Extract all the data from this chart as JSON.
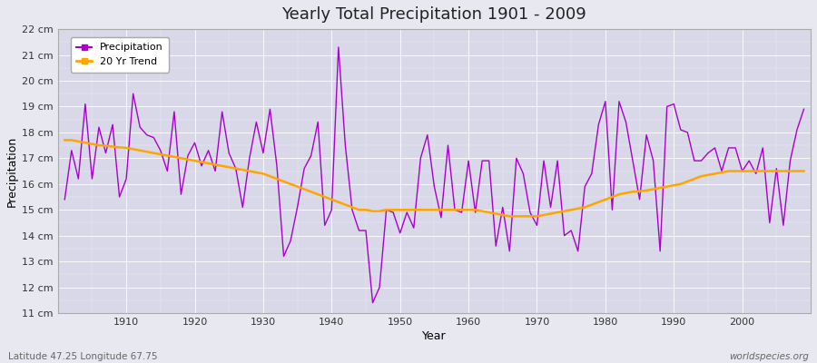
{
  "title": "Yearly Total Precipitation 1901 - 2009",
  "xlabel": "Year",
  "ylabel": "Precipitation",
  "subtitle_left": "Latitude 47.25 Longitude 67.75",
  "subtitle_right": "worldspecies.org",
  "ylim": [
    11,
    22
  ],
  "ytick_labels": [
    "11 cm",
    "12 cm",
    "13 cm",
    "14 cm",
    "15 cm",
    "16 cm",
    "17 cm",
    "18 cm",
    "19 cm",
    "20 cm",
    "21 cm",
    "22 cm"
  ],
  "ytick_values": [
    11,
    12,
    13,
    14,
    15,
    16,
    17,
    18,
    19,
    20,
    21,
    22
  ],
  "xlim_min": 1900,
  "xlim_max": 2010,
  "precip_color": "#aa00cc",
  "trend_color": "#FFA500",
  "bg_color": "#e8e8f0",
  "plot_bg_color": "#d8d8e8",
  "grid_color": "#ffffff",
  "years": [
    1901,
    1902,
    1903,
    1904,
    1905,
    1906,
    1907,
    1908,
    1909,
    1910,
    1911,
    1912,
    1913,
    1914,
    1915,
    1916,
    1917,
    1918,
    1919,
    1920,
    1921,
    1922,
    1923,
    1924,
    1925,
    1926,
    1927,
    1928,
    1929,
    1930,
    1931,
    1932,
    1933,
    1934,
    1935,
    1936,
    1937,
    1938,
    1939,
    1940,
    1941,
    1942,
    1943,
    1944,
    1945,
    1946,
    1947,
    1948,
    1949,
    1950,
    1951,
    1952,
    1953,
    1954,
    1955,
    1956,
    1957,
    1958,
    1959,
    1960,
    1961,
    1962,
    1963,
    1964,
    1965,
    1966,
    1967,
    1968,
    1969,
    1970,
    1971,
    1972,
    1973,
    1974,
    1975,
    1976,
    1977,
    1978,
    1979,
    1980,
    1981,
    1982,
    1983,
    1984,
    1985,
    1986,
    1987,
    1988,
    1989,
    1990,
    1991,
    1992,
    1993,
    1994,
    1995,
    1996,
    1997,
    1998,
    1999,
    2000,
    2001,
    2002,
    2003,
    2004,
    2005,
    2006,
    2007,
    2008,
    2009
  ],
  "precipitation": [
    15.4,
    17.3,
    16.2,
    19.1,
    16.2,
    18.2,
    17.2,
    18.3,
    15.5,
    16.2,
    19.5,
    18.2,
    17.9,
    17.8,
    17.3,
    16.5,
    18.8,
    15.6,
    17.1,
    17.6,
    16.7,
    17.3,
    16.5,
    18.8,
    17.2,
    16.6,
    15.1,
    17.0,
    18.4,
    17.2,
    18.9,
    16.7,
    13.2,
    13.8,
    15.1,
    16.6,
    17.1,
    18.4,
    14.4,
    15.0,
    21.3,
    17.5,
    15.0,
    14.2,
    14.2,
    11.4,
    12.0,
    15.0,
    14.9,
    14.1,
    14.9,
    14.3,
    17.0,
    17.9,
    15.9,
    14.7,
    17.5,
    15.0,
    14.9,
    16.9,
    14.9,
    16.9,
    16.9,
    13.6,
    15.1,
    13.4,
    17.0,
    16.4,
    14.9,
    14.4,
    16.9,
    15.1,
    16.9,
    14.0,
    14.2,
    13.4,
    15.9,
    16.4,
    18.3,
    19.2,
    15.0,
    19.2,
    18.4,
    16.9,
    15.4,
    17.9,
    16.9,
    13.4,
    19.0,
    19.1,
    18.1,
    18.0,
    16.9,
    16.9,
    17.2,
    17.4,
    16.5,
    17.4,
    17.4,
    16.5,
    16.9,
    16.4,
    17.4,
    14.5,
    16.6,
    14.4,
    16.9,
    18.1,
    18.9
  ],
  "trend": [
    17.7,
    17.7,
    17.65,
    17.6,
    17.55,
    17.5,
    17.48,
    17.45,
    17.42,
    17.4,
    17.35,
    17.3,
    17.25,
    17.2,
    17.15,
    17.1,
    17.05,
    17.0,
    16.95,
    16.9,
    16.85,
    16.8,
    16.75,
    16.7,
    16.65,
    16.6,
    16.55,
    16.5,
    16.45,
    16.4,
    16.3,
    16.2,
    16.1,
    16.0,
    15.9,
    15.8,
    15.7,
    15.6,
    15.5,
    15.4,
    15.3,
    15.2,
    15.1,
    15.0,
    15.0,
    14.95,
    14.95,
    15.0,
    15.0,
    15.0,
    15.0,
    15.0,
    15.0,
    15.0,
    15.0,
    15.0,
    15.0,
    15.0,
    15.0,
    15.0,
    15.0,
    14.95,
    14.9,
    14.85,
    14.8,
    14.75,
    14.75,
    14.75,
    14.75,
    14.75,
    14.8,
    14.85,
    14.9,
    14.95,
    15.0,
    15.05,
    15.1,
    15.2,
    15.3,
    15.4,
    15.5,
    15.6,
    15.65,
    15.7,
    15.72,
    15.75,
    15.8,
    15.85,
    15.9,
    15.95,
    16.0,
    16.1,
    16.2,
    16.3,
    16.35,
    16.4,
    16.45,
    16.5,
    16.5,
    16.5,
    16.5,
    16.5,
    16.5,
    16.5,
    16.5,
    16.5,
    16.5,
    16.5,
    16.5
  ]
}
